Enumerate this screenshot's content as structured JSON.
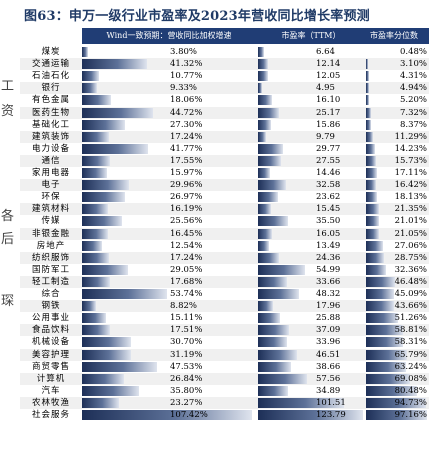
{
  "title": "图63：申万一级行业市盈率及2023年营收同比增长率预测",
  "left_fragments": [
    "工",
    "资",
    "各",
    "后",
    "琛"
  ],
  "chart_data": {
    "type": "table",
    "columns": [
      "Wind一致预期：营收同比加权增速",
      "市盈率（TTM）",
      "市盈率分位数"
    ],
    "rows": [
      {
        "name": "煤炭",
        "growth": 3.8,
        "growth_label": "3.80%",
        "pe": 6.64,
        "pe_label": "6.64",
        "pct": 0.48,
        "pct_label": "0.48%"
      },
      {
        "name": "交通运输",
        "growth": 41.32,
        "growth_label": "41.32%",
        "pe": 12.14,
        "pe_label": "12.14",
        "pct": 3.1,
        "pct_label": "3.10%"
      },
      {
        "name": "石油石化",
        "growth": 10.77,
        "growth_label": "10.77%",
        "pe": 12.05,
        "pe_label": "12.05",
        "pct": 4.31,
        "pct_label": "4.31%"
      },
      {
        "name": "银行",
        "growth": 9.33,
        "growth_label": "9.33%",
        "pe": 4.95,
        "pe_label": "4.95",
        "pct": 4.94,
        "pct_label": "4.94%"
      },
      {
        "name": "有色金属",
        "growth": 18.06,
        "growth_label": "18.06%",
        "pe": 16.1,
        "pe_label": "16.10",
        "pct": 5.2,
        "pct_label": "5.20%"
      },
      {
        "name": "医药生物",
        "growth": 44.72,
        "growth_label": "44.72%",
        "pe": 25.17,
        "pe_label": "25.17",
        "pct": 7.32,
        "pct_label": "7.32%"
      },
      {
        "name": "基础化工",
        "growth": 27.3,
        "growth_label": "27.30%",
        "pe": 15.86,
        "pe_label": "15.86",
        "pct": 8.37,
        "pct_label": "8.37%"
      },
      {
        "name": "建筑装饰",
        "growth": 17.24,
        "growth_label": "17.24%",
        "pe": 9.79,
        "pe_label": "9.79",
        "pct": 11.29,
        "pct_label": "11.29%"
      },
      {
        "name": "电力设备",
        "growth": 41.77,
        "growth_label": "41.77%",
        "pe": 29.77,
        "pe_label": "29.77",
        "pct": 14.23,
        "pct_label": "14.23%"
      },
      {
        "name": "通信",
        "growth": 17.55,
        "growth_label": "17.55%",
        "pe": 27.55,
        "pe_label": "27.55",
        "pct": 15.73,
        "pct_label": "15.73%"
      },
      {
        "name": "家用电器",
        "growth": 15.97,
        "growth_label": "15.97%",
        "pe": 14.46,
        "pe_label": "14.46",
        "pct": 17.11,
        "pct_label": "17.11%"
      },
      {
        "name": "电子",
        "growth": 29.96,
        "growth_label": "29.96%",
        "pe": 32.58,
        "pe_label": "32.58",
        "pct": 16.42,
        "pct_label": "16.42%"
      },
      {
        "name": "环保",
        "growth": 26.97,
        "growth_label": "26.97%",
        "pe": 23.62,
        "pe_label": "23.62",
        "pct": 18.13,
        "pct_label": "18.13%"
      },
      {
        "name": "建筑材料",
        "growth": 16.19,
        "growth_label": "16.19%",
        "pe": 15.45,
        "pe_label": "15.45",
        "pct": 21.35,
        "pct_label": "21.35%"
      },
      {
        "name": "传媒",
        "growth": 25.56,
        "growth_label": "25.56%",
        "pe": 35.5,
        "pe_label": "35.50",
        "pct": 21.01,
        "pct_label": "21.01%"
      },
      {
        "name": "非银金融",
        "growth": 16.45,
        "growth_label": "16.45%",
        "pe": 16.05,
        "pe_label": "16.05",
        "pct": 21.05,
        "pct_label": "21.05%"
      },
      {
        "name": "房地产",
        "growth": 12.54,
        "growth_label": "12.54%",
        "pe": 13.49,
        "pe_label": "13.49",
        "pct": 27.06,
        "pct_label": "27.06%"
      },
      {
        "name": "纺织服饰",
        "growth": 17.24,
        "growth_label": "17.24%",
        "pe": 24.36,
        "pe_label": "24.36",
        "pct": 28.75,
        "pct_label": "28.75%"
      },
      {
        "name": "国防军工",
        "growth": 29.05,
        "growth_label": "29.05%",
        "pe": 54.99,
        "pe_label": "54.99",
        "pct": 32.36,
        "pct_label": "32.36%"
      },
      {
        "name": "轻工制造",
        "growth": 17.68,
        "growth_label": "17.68%",
        "pe": 33.66,
        "pe_label": "33.66",
        "pct": 46.48,
        "pct_label": "46.48%"
      },
      {
        "name": "综合",
        "growth": 53.74,
        "growth_label": "53.74%",
        "pe": 48.32,
        "pe_label": "48.32",
        "pct": 45.09,
        "pct_label": "45.09%"
      },
      {
        "name": "钢铁",
        "growth": 8.82,
        "growth_label": "8.82%",
        "pe": 17.96,
        "pe_label": "17.96",
        "pct": 43.66,
        "pct_label": "43.66%"
      },
      {
        "name": "公用事业",
        "growth": 15.11,
        "growth_label": "15.11%",
        "pe": 25.88,
        "pe_label": "25.88",
        "pct": 51.26,
        "pct_label": "51.26%"
      },
      {
        "name": "食品饮料",
        "growth": 17.51,
        "growth_label": "17.51%",
        "pe": 37.09,
        "pe_label": "37.09",
        "pct": 58.81,
        "pct_label": "58.81%"
      },
      {
        "name": "机械设备",
        "growth": 30.7,
        "growth_label": "30.70%",
        "pe": 33.96,
        "pe_label": "33.96",
        "pct": 58.31,
        "pct_label": "58.31%"
      },
      {
        "name": "美容护理",
        "growth": 31.19,
        "growth_label": "31.19%",
        "pe": 46.51,
        "pe_label": "46.51",
        "pct": 65.79,
        "pct_label": "65.79%"
      },
      {
        "name": "商贸零售",
        "growth": 47.53,
        "growth_label": "47.53%",
        "pe": 38.66,
        "pe_label": "38.66",
        "pct": 63.24,
        "pct_label": "63.24%"
      },
      {
        "name": "计算机",
        "growth": 26.84,
        "growth_label": "26.84%",
        "pe": 57.56,
        "pe_label": "57.56",
        "pct": 69.08,
        "pct_label": "69.08%"
      },
      {
        "name": "汽车",
        "growth": 35.8,
        "growth_label": "35.80%",
        "pe": 34.89,
        "pe_label": "34.89",
        "pct": 80.48,
        "pct_label": "80.48%"
      },
      {
        "name": "农林牧渔",
        "growth": 23.27,
        "growth_label": "23.27%",
        "pe": 101.51,
        "pe_label": "101.51",
        "pct": 94.73,
        "pct_label": "94.73%"
      },
      {
        "name": "社会服务",
        "growth": 107.42,
        "growth_label": "107.42%",
        "pe": 123.79,
        "pe_label": "123.79",
        "pct": 97.16,
        "pct_label": "97.16%"
      }
    ],
    "scales": {
      "growth_max": 110,
      "pe_max": 125,
      "pct_max": 100
    }
  }
}
